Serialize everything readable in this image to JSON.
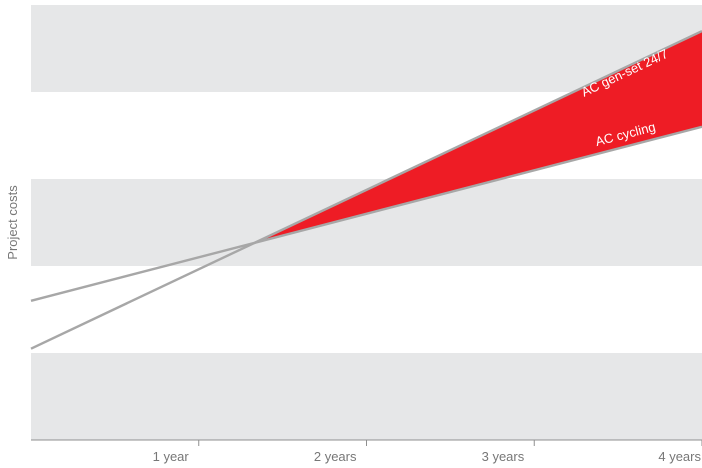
{
  "chart_data": {
    "type": "line",
    "ylabel": "Project costs",
    "xlabel": "",
    "x_ticks": [
      {
        "x": 1,
        "label": "1 year"
      },
      {
        "x": 2,
        "label": "2 years"
      },
      {
        "x": 3,
        "label": "3 years"
      },
      {
        "x": 4,
        "label": "4 years"
      }
    ],
    "xlim": [
      0,
      4
    ],
    "ylim": [
      0,
      100
    ],
    "grid": "alternating horizontal bands",
    "series": [
      {
        "name": "AC gen-set 24/7",
        "x": [
          0,
          4
        ],
        "y": [
          21,
          94
        ]
      },
      {
        "name": "AC cycling",
        "x": [
          0,
          4
        ],
        "y": [
          32,
          72
        ]
      }
    ],
    "annotations": {
      "shaded_region": "area between the two series after the crossover",
      "crossover_x": 1.33
    },
    "colors": {
      "line": "#a7a7a7",
      "fill": "#ee1c25",
      "band": "#e6e7e8",
      "axis": "#8f8f8f",
      "label_text": "#ffffff",
      "tick_text": "#777777"
    }
  }
}
